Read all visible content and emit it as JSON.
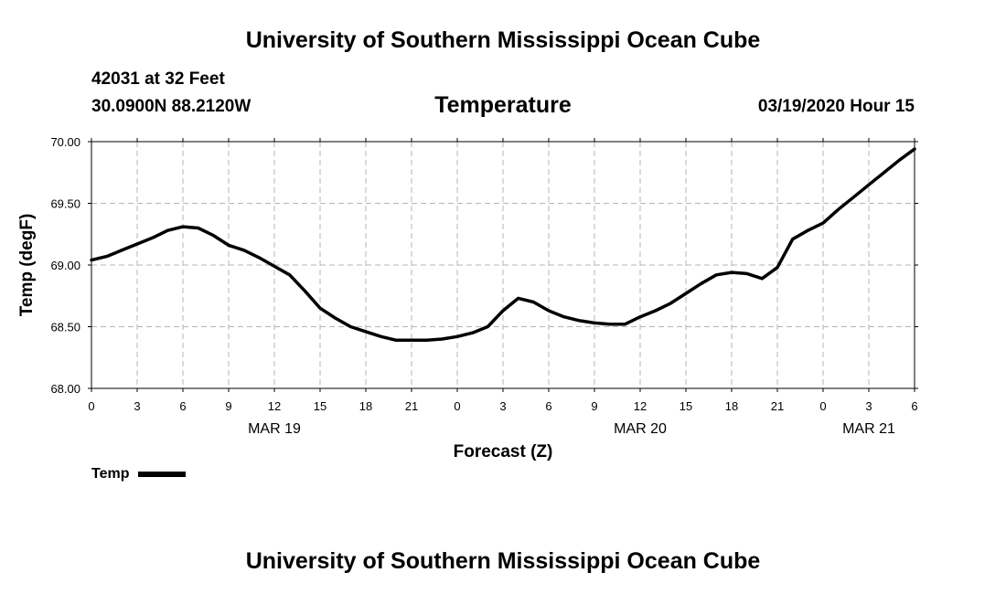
{
  "header": {
    "title": "University of Southern Mississippi Ocean Cube",
    "station_line1": "42031 at 32 Feet",
    "station_line2": "30.0900N 88.2120W",
    "issued": "03/19/2020 Hour 15"
  },
  "footer": {
    "title": "University of Southern Mississippi Ocean Cube"
  },
  "chart_data": {
    "type": "line",
    "title": "Temperature",
    "xlabel": "Forecast (Z)",
    "ylabel": "Temp (degF)",
    "ylim": [
      68.0,
      70.0
    ],
    "yticks": [
      "68.00",
      "68.50",
      "69.00",
      "69.50",
      "70.00"
    ],
    "xlim": [
      0,
      54
    ],
    "xticks": [
      "0",
      "3",
      "6",
      "9",
      "12",
      "15",
      "18",
      "21",
      "0",
      "3",
      "6",
      "9",
      "12",
      "15",
      "18",
      "21",
      "0",
      "3",
      "6"
    ],
    "date_labels": [
      {
        "label": "MAR 19",
        "at_hour": 12
      },
      {
        "label": "MAR 20",
        "at_hour": 36
      },
      {
        "label": "MAR 21",
        "at_hour": 51
      }
    ],
    "grid": true,
    "legend_position": "bottom-left",
    "series": [
      {
        "name": "Temp",
        "color": "#000000",
        "x": [
          0,
          1,
          2,
          3,
          4,
          5,
          6,
          7,
          8,
          9,
          10,
          11,
          12,
          13,
          14,
          15,
          16,
          17,
          18,
          19,
          20,
          21,
          22,
          23,
          24,
          25,
          26,
          27,
          28,
          29,
          30,
          31,
          32,
          33,
          34,
          35,
          36,
          37,
          38,
          39,
          40,
          41,
          42,
          43,
          44,
          45,
          46,
          47,
          48,
          49,
          50,
          51,
          52,
          53,
          54
        ],
        "y": [
          69.04,
          69.07,
          69.12,
          69.17,
          69.22,
          69.28,
          69.31,
          69.3,
          69.24,
          69.16,
          69.12,
          69.06,
          68.99,
          68.92,
          68.79,
          68.65,
          68.57,
          68.5,
          68.46,
          68.42,
          68.39,
          68.39,
          68.39,
          68.4,
          68.42,
          68.45,
          68.5,
          68.63,
          68.73,
          68.7,
          68.63,
          68.58,
          68.55,
          68.53,
          68.52,
          68.52,
          68.58,
          68.63,
          68.69,
          68.77,
          68.85,
          68.92,
          68.94,
          68.93,
          68.89,
          68.98,
          69.21,
          69.28,
          69.34,
          69.45,
          69.55,
          69.65,
          69.75,
          69.85,
          69.94
        ]
      }
    ]
  }
}
